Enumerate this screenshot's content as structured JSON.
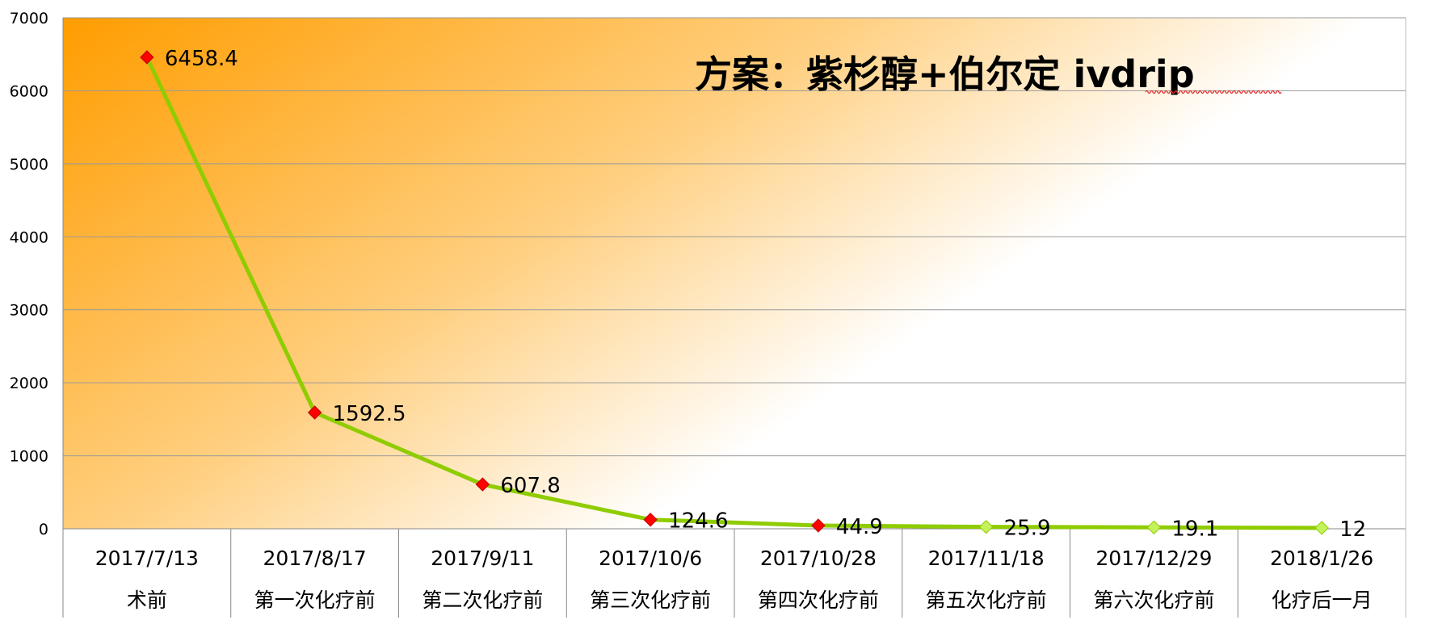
{
  "chart_data": {
    "type": "line",
    "title": "方案：紫杉醇+伯尔定 ivdrip",
    "categories": [
      {
        "date": "2017/7/13",
        "stage": "术前"
      },
      {
        "date": "2017/8/17",
        "stage": "第一次化疗前"
      },
      {
        "date": "2017/9/11",
        "stage": "第二次化疗前"
      },
      {
        "date": "2017/10/6",
        "stage": "第三次化疗前"
      },
      {
        "date": "2017/10/28",
        "stage": "第四次化疗前"
      },
      {
        "date": "2017/11/18",
        "stage": "第五次化疗前"
      },
      {
        "date": "2017/12/29",
        "stage": "第六次化疗前"
      },
      {
        "date": "2018/1/26",
        "stage": "化疗后一月"
      }
    ],
    "series": [
      {
        "values": [
          6458.4,
          1592.5,
          607.8,
          124.6,
          44.9,
          25.9,
          19.1,
          12
        ]
      }
    ],
    "data_labels": [
      "6458.4",
      "1592.5",
      "607.8",
      "124.6",
      "44.9",
      "25.9",
      "19.1",
      "12"
    ],
    "y_ticks": [
      "0",
      "1000",
      "2000",
      "3000",
      "4000",
      "5000",
      "6000",
      "7000"
    ],
    "ylim": [
      0,
      7000
    ],
    "grid": true,
    "legend": "none",
    "colors": {
      "line": "#8fcc00",
      "marker_red": "#ff0000",
      "marker_green": "#c4f25a",
      "background_start": "#ff9d00",
      "background_end": "#ffffff",
      "grid": "#999999"
    },
    "marker_colors": [
      "red",
      "red",
      "red",
      "red",
      "red",
      "green",
      "green",
      "green"
    ]
  }
}
